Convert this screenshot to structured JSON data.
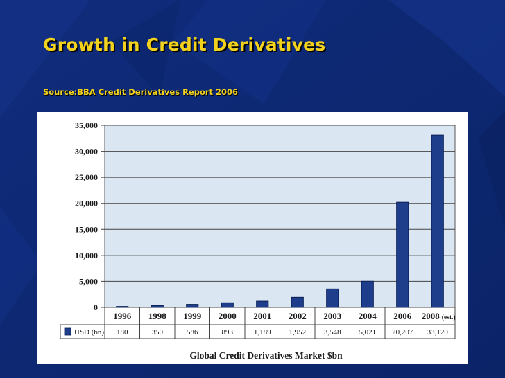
{
  "slide": {
    "title": "Growth in Credit Derivatives",
    "source": "Source:BBA Credit Derivatives Report 2006"
  },
  "colors": {
    "background": "#0f2a78",
    "title": "#f2d21c",
    "plot_background": "#dbe6f3",
    "bar": "#1e3e8c"
  },
  "chart_data": {
    "type": "bar",
    "title": "Global Credit Derivatives Market $bn",
    "categories": [
      "1996",
      "1998",
      "1999",
      "2000",
      "2001",
      "2002",
      "2003",
      "2004",
      "2006",
      "2008"
    ],
    "category_note": "(est.)",
    "series": [
      {
        "name": "USD (bn)",
        "values": [
          180,
          350,
          586,
          893,
          1189,
          1952,
          3548,
          5021,
          20207,
          33120
        ],
        "value_labels": [
          "180",
          "350",
          "586",
          "893",
          "1,189",
          "1,952",
          "3,548",
          "5,021",
          "20,207",
          "33,120"
        ]
      }
    ],
    "ylim": [
      0,
      35000
    ],
    "yticks": [
      0,
      5000,
      10000,
      15000,
      20000,
      25000,
      30000,
      35000
    ],
    "ytick_labels": [
      "0",
      "5,000",
      "10,000",
      "15,000",
      "20,000",
      "25,000",
      "30,000",
      "35,000"
    ],
    "grid": true,
    "legend": "data-table-row"
  }
}
